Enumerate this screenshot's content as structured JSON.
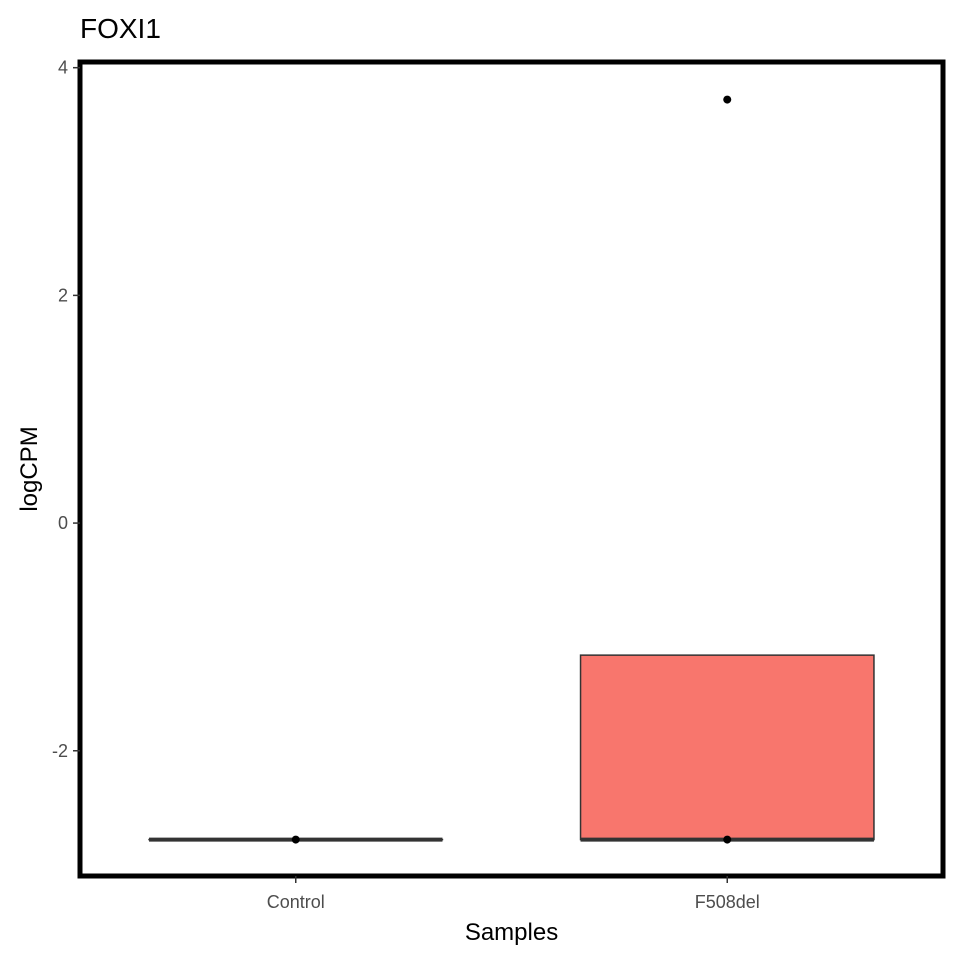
{
  "chart_data": {
    "type": "box",
    "title": "FOXI1",
    "xlabel": "Samples",
    "ylabel": "logCPM",
    "categories": [
      "Control",
      "F508del"
    ],
    "ylim": [
      -3.1,
      4.05
    ],
    "yticks": [
      -2,
      0,
      2,
      4
    ],
    "grid": false,
    "legend": "none",
    "boxes": [
      {
        "category": "Control",
        "min": -2.78,
        "q1": -2.78,
        "median": -2.78,
        "q3": -2.78,
        "max": -2.78,
        "fill": "#ffffff",
        "points": [
          -2.78
        ]
      },
      {
        "category": "F508del",
        "min": -2.78,
        "q1": -2.78,
        "median": -2.78,
        "q3": -1.16,
        "max": -1.16,
        "fill": "#f8766d",
        "points": [
          -2.78,
          3.72
        ]
      }
    ],
    "colors": {
      "box_fill": "#f8766d",
      "box_line": "#333333",
      "panel_border": "#000000",
      "point": "#000000"
    }
  }
}
